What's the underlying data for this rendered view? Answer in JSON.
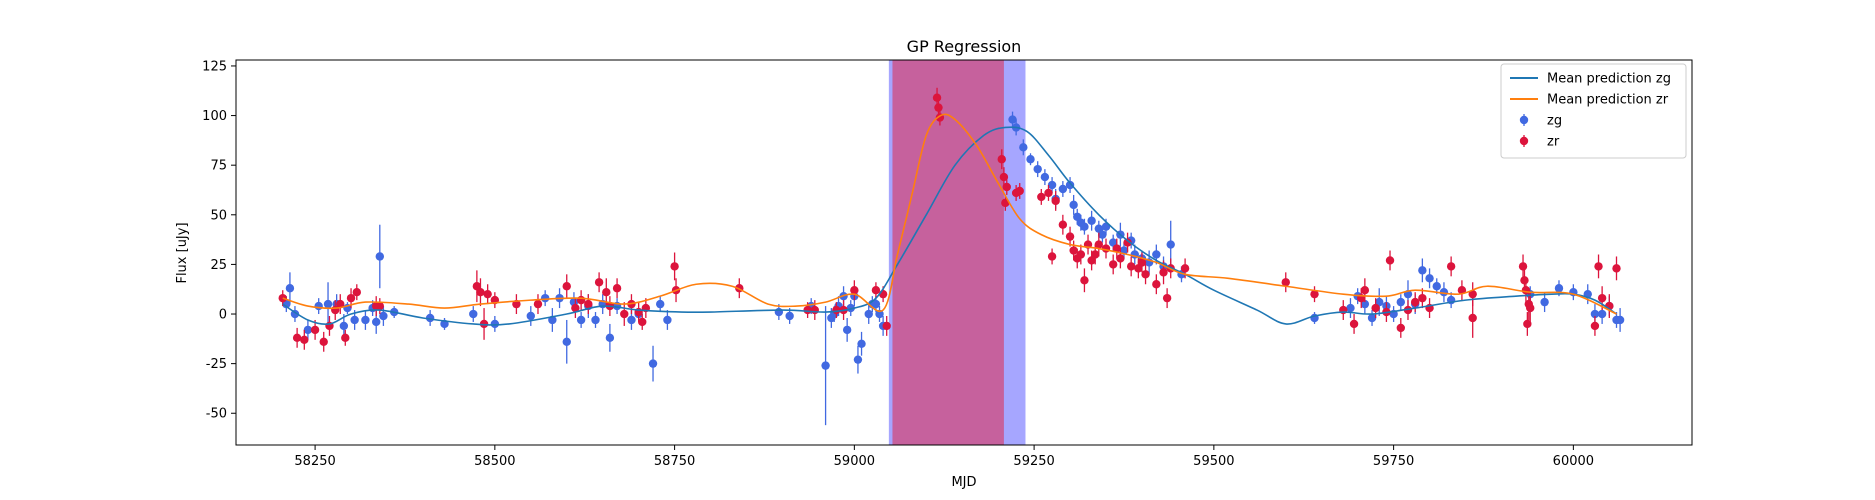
{
  "chart_data": {
    "type": "scatter",
    "title": "GP Regression",
    "xlabel": "MJD",
    "ylabel": "Flux [uJy]",
    "xlim": [
      58140,
      60165
    ],
    "ylim": [
      -66,
      128
    ],
    "xticks": [
      58250,
      58500,
      58750,
      59000,
      59250,
      59500,
      59750,
      60000
    ],
    "yticks": [
      -50,
      -25,
      0,
      25,
      50,
      75,
      100,
      125
    ],
    "legend_position": "top-right",
    "spans": [
      {
        "x0": 59048,
        "x1": 59238,
        "color": "#8080ff",
        "opacity": 0.7
      },
      {
        "x0": 59053,
        "x1": 59208,
        "color": "#d04a7c",
        "opacity": 0.75
      }
    ],
    "series": [
      {
        "name": "Mean prediction zg",
        "kind": "line",
        "color": "#1f77b4",
        "x": [
          58205,
          58240,
          58270,
          58300,
          58340,
          58400,
          58470,
          58520,
          58600,
          58650,
          58700,
          58760,
          58800,
          58900,
          58960,
          59000,
          59030,
          59060,
          59100,
          59140,
          59180,
          59210,
          59240,
          59270,
          59300,
          59340,
          59380,
          59420,
          59460,
          59500,
          59560,
          59600,
          59640,
          59680,
          59720,
          59780,
          59850,
          59920,
          59970,
          60000,
          60030,
          60060
        ],
        "y": [
          5,
          -3,
          -5,
          0,
          2,
          -2,
          -5,
          -5,
          0,
          4,
          2,
          1,
          1,
          2,
          1,
          3,
          8,
          25,
          50,
          75,
          90,
          94,
          92,
          80,
          66,
          50,
          37,
          27,
          20,
          12,
          2,
          -5,
          -1,
          1,
          0,
          3,
          7,
          9,
          10,
          10,
          7,
          0
        ]
      },
      {
        "name": "Mean prediction zr",
        "kind": "line",
        "color": "#ff7f0e",
        "x": [
          58205,
          58240,
          58280,
          58320,
          58380,
          58430,
          58480,
          58550,
          58620,
          58680,
          58730,
          58780,
          58830,
          58880,
          58920,
          58960,
          59000,
          59040,
          59060,
          59080,
          59100,
          59120,
          59140,
          59170,
          59200,
          59230,
          59260,
          59300,
          59340,
          59380,
          59420,
          59460,
          59520,
          59600,
          59680,
          59740,
          59780,
          59840,
          59880,
          59940,
          60000,
          60060
        ],
        "y": [
          8,
          4,
          3,
          6,
          5,
          3,
          5,
          7,
          8,
          5,
          9,
          15,
          14,
          5,
          4,
          6,
          10,
          2,
          30,
          60,
          90,
          100,
          98,
          85,
          66,
          48,
          40,
          35,
          33,
          30,
          26,
          20,
          18,
          14,
          10,
          9,
          12,
          10,
          14,
          11,
          10,
          0
        ]
      },
      {
        "name": "zg",
        "kind": "errorbar",
        "color": "#4169e1",
        "x": [
          58210,
          58215,
          58222,
          58240,
          58255,
          58268,
          58280,
          58290,
          58295,
          58305,
          58320,
          58330,
          58335,
          58340,
          58345,
          58360,
          58410,
          58430,
          58470,
          58500,
          58550,
          58570,
          58580,
          58590,
          58600,
          58610,
          58620,
          58630,
          58640,
          58650,
          58660,
          58670,
          58690,
          58700,
          58720,
          58730,
          58740,
          58895,
          58910,
          58940,
          58960,
          58968,
          58972,
          58978,
          58985,
          58990,
          58995,
          59000,
          59005,
          59010,
          59020,
          59025,
          59030,
          59035,
          59040,
          59220,
          59225,
          59235,
          59245,
          59255,
          59265,
          59275,
          59280,
          59290,
          59300,
          59305,
          59310,
          59315,
          59320,
          59330,
          59340,
          59345,
          59350,
          59360,
          59370,
          59375,
          59385,
          59390,
          59400,
          59410,
          59420,
          59430,
          59440,
          59455,
          59640,
          59690,
          59700,
          59710,
          59720,
          59730,
          59740,
          59750,
          59760,
          59770,
          59780,
          59790,
          59800,
          59810,
          59820,
          59830,
          59940,
          59960,
          59980,
          60000,
          60020,
          60030,
          60040,
          60050,
          60060,
          60065
        ],
        "y": [
          5,
          13,
          0,
          -8,
          4,
          5,
          5,
          -6,
          3,
          -3,
          -3,
          3,
          -4,
          29,
          -1,
          1,
          -2,
          -5,
          0,
          -5,
          -1,
          8,
          -3,
          8,
          -14,
          6,
          -3,
          4,
          -3,
          5,
          -12,
          4,
          -3,
          0,
          -25,
          5,
          -3,
          1,
          -1,
          4,
          -26,
          -2,
          0,
          4,
          9,
          -8,
          3,
          9,
          -23,
          -15,
          0,
          5,
          5,
          0,
          -6,
          98,
          94,
          84,
          78,
          73,
          69,
          65,
          58,
          63,
          65,
          55,
          49,
          46,
          44,
          47,
          43,
          40,
          44,
          36,
          40,
          32,
          37,
          30,
          28,
          26,
          30,
          24,
          35,
          20,
          -2,
          3,
          9,
          5,
          -2,
          6,
          4,
          0,
          6,
          10,
          5,
          22,
          18,
          14,
          11,
          7,
          10,
          6,
          13,
          11,
          10,
          0,
          0,
          4,
          -3,
          -3
        ],
        "err": [
          4,
          8,
          4,
          5,
          4,
          11,
          5,
          6,
          3,
          5,
          5,
          4,
          6,
          16,
          5,
          3,
          4,
          3,
          4,
          4,
          5,
          4,
          6,
          5,
          11,
          5,
          4,
          6,
          4,
          5,
          7,
          4,
          5,
          3,
          9,
          4,
          5,
          4,
          4,
          4,
          30,
          5,
          4,
          5,
          5,
          6,
          4,
          5,
          7,
          6,
          5,
          4,
          4,
          4,
          5,
          4,
          4,
          4,
          3,
          4,
          4,
          4,
          5,
          4,
          4,
          5,
          4,
          4,
          4,
          5,
          4,
          4,
          4,
          4,
          6,
          4,
          4,
          5,
          4,
          6,
          5,
          5,
          12,
          4,
          3,
          5,
          4,
          5,
          4,
          7,
          5,
          4,
          4,
          7,
          5,
          6,
          5,
          4,
          5,
          4,
          4,
          5,
          4,
          4,
          5,
          5,
          5,
          5,
          4,
          6
        ]
      },
      {
        "name": "zr",
        "kind": "errorbar",
        "color": "#dc143c",
        "x": [
          58205,
          58225,
          58235,
          58250,
          58262,
          58270,
          58278,
          58285,
          58292,
          58300,
          58308,
          58335,
          58340,
          58475,
          58480,
          58485,
          58490,
          58500,
          58530,
          58560,
          58600,
          58612,
          58620,
          58630,
          58645,
          58655,
          58660,
          58670,
          58680,
          58690,
          58700,
          58705,
          58710,
          58750,
          58752,
          58840,
          58935,
          58945,
          58975,
          58985,
          59000,
          59030,
          59040,
          59045,
          59115,
          59117,
          59119,
          59205,
          59208,
          59210,
          59212,
          59225,
          59230,
          59260,
          59270,
          59275,
          59280,
          59290,
          59300,
          59305,
          59310,
          59315,
          59320,
          59325,
          59330,
          59335,
          59340,
          59350,
          59360,
          59365,
          59370,
          59380,
          59385,
          59395,
          59400,
          59405,
          59420,
          59430,
          59435,
          59440,
          59460,
          59600,
          59640,
          59680,
          59695,
          59705,
          59710,
          59725,
          59740,
          59745,
          59760,
          59770,
          59780,
          59790,
          59800,
          59830,
          59845,
          59860,
          59860,
          59930,
          59932,
          59934,
          59936,
          59938,
          59940,
          60030,
          60035,
          60040,
          60050,
          60060
        ],
        "y": [
          8,
          -12,
          -13,
          -8,
          -14,
          -6,
          2,
          5,
          -12,
          8,
          11,
          4,
          4,
          14,
          11,
          -5,
          10,
          7,
          5,
          5,
          14,
          3,
          7,
          5,
          16,
          11,
          4,
          13,
          0,
          5,
          1,
          -4,
          3,
          24,
          12,
          13,
          2,
          2,
          2,
          2,
          12,
          12,
          10,
          -6,
          109,
          104,
          99,
          78,
          69,
          56,
          64,
          61,
          62,
          59,
          61,
          29,
          57,
          45,
          39,
          32,
          28,
          30,
          17,
          35,
          27,
          30,
          35,
          33,
          25,
          33,
          28,
          36,
          24,
          23,
          26,
          20,
          15,
          21,
          8,
          23,
          23,
          16,
          10,
          2,
          -5,
          8,
          12,
          3,
          1,
          27,
          -7,
          2,
          6,
          8,
          3,
          24,
          12,
          -2,
          10,
          24,
          17,
          12,
          -5,
          5,
          3,
          -6,
          24,
          8,
          4,
          23
        ],
        "err": [
          4,
          5,
          5,
          5,
          5,
          5,
          5,
          5,
          4,
          5,
          4,
          5,
          4,
          8,
          7,
          8,
          5,
          4,
          5,
          5,
          6,
          5,
          5,
          5,
          5,
          7,
          5,
          5,
          6,
          5,
          5,
          4,
          5,
          7,
          6,
          5,
          4,
          5,
          4,
          5,
          5,
          4,
          4,
          5,
          5,
          4,
          4,
          5,
          5,
          4,
          4,
          4,
          4,
          4,
          4,
          4,
          5,
          5,
          5,
          5,
          5,
          5,
          6,
          5,
          5,
          5,
          6,
          5,
          5,
          5,
          5,
          5,
          5,
          5,
          5,
          5,
          5,
          6,
          5,
          5,
          5,
          5,
          4,
          5,
          5,
          5,
          6,
          5,
          5,
          5,
          5,
          5,
          5,
          5,
          5,
          5,
          5,
          10,
          6,
          6,
          6,
          6,
          6,
          8,
          8,
          5,
          6,
          6,
          6,
          6
        ]
      }
    ]
  }
}
